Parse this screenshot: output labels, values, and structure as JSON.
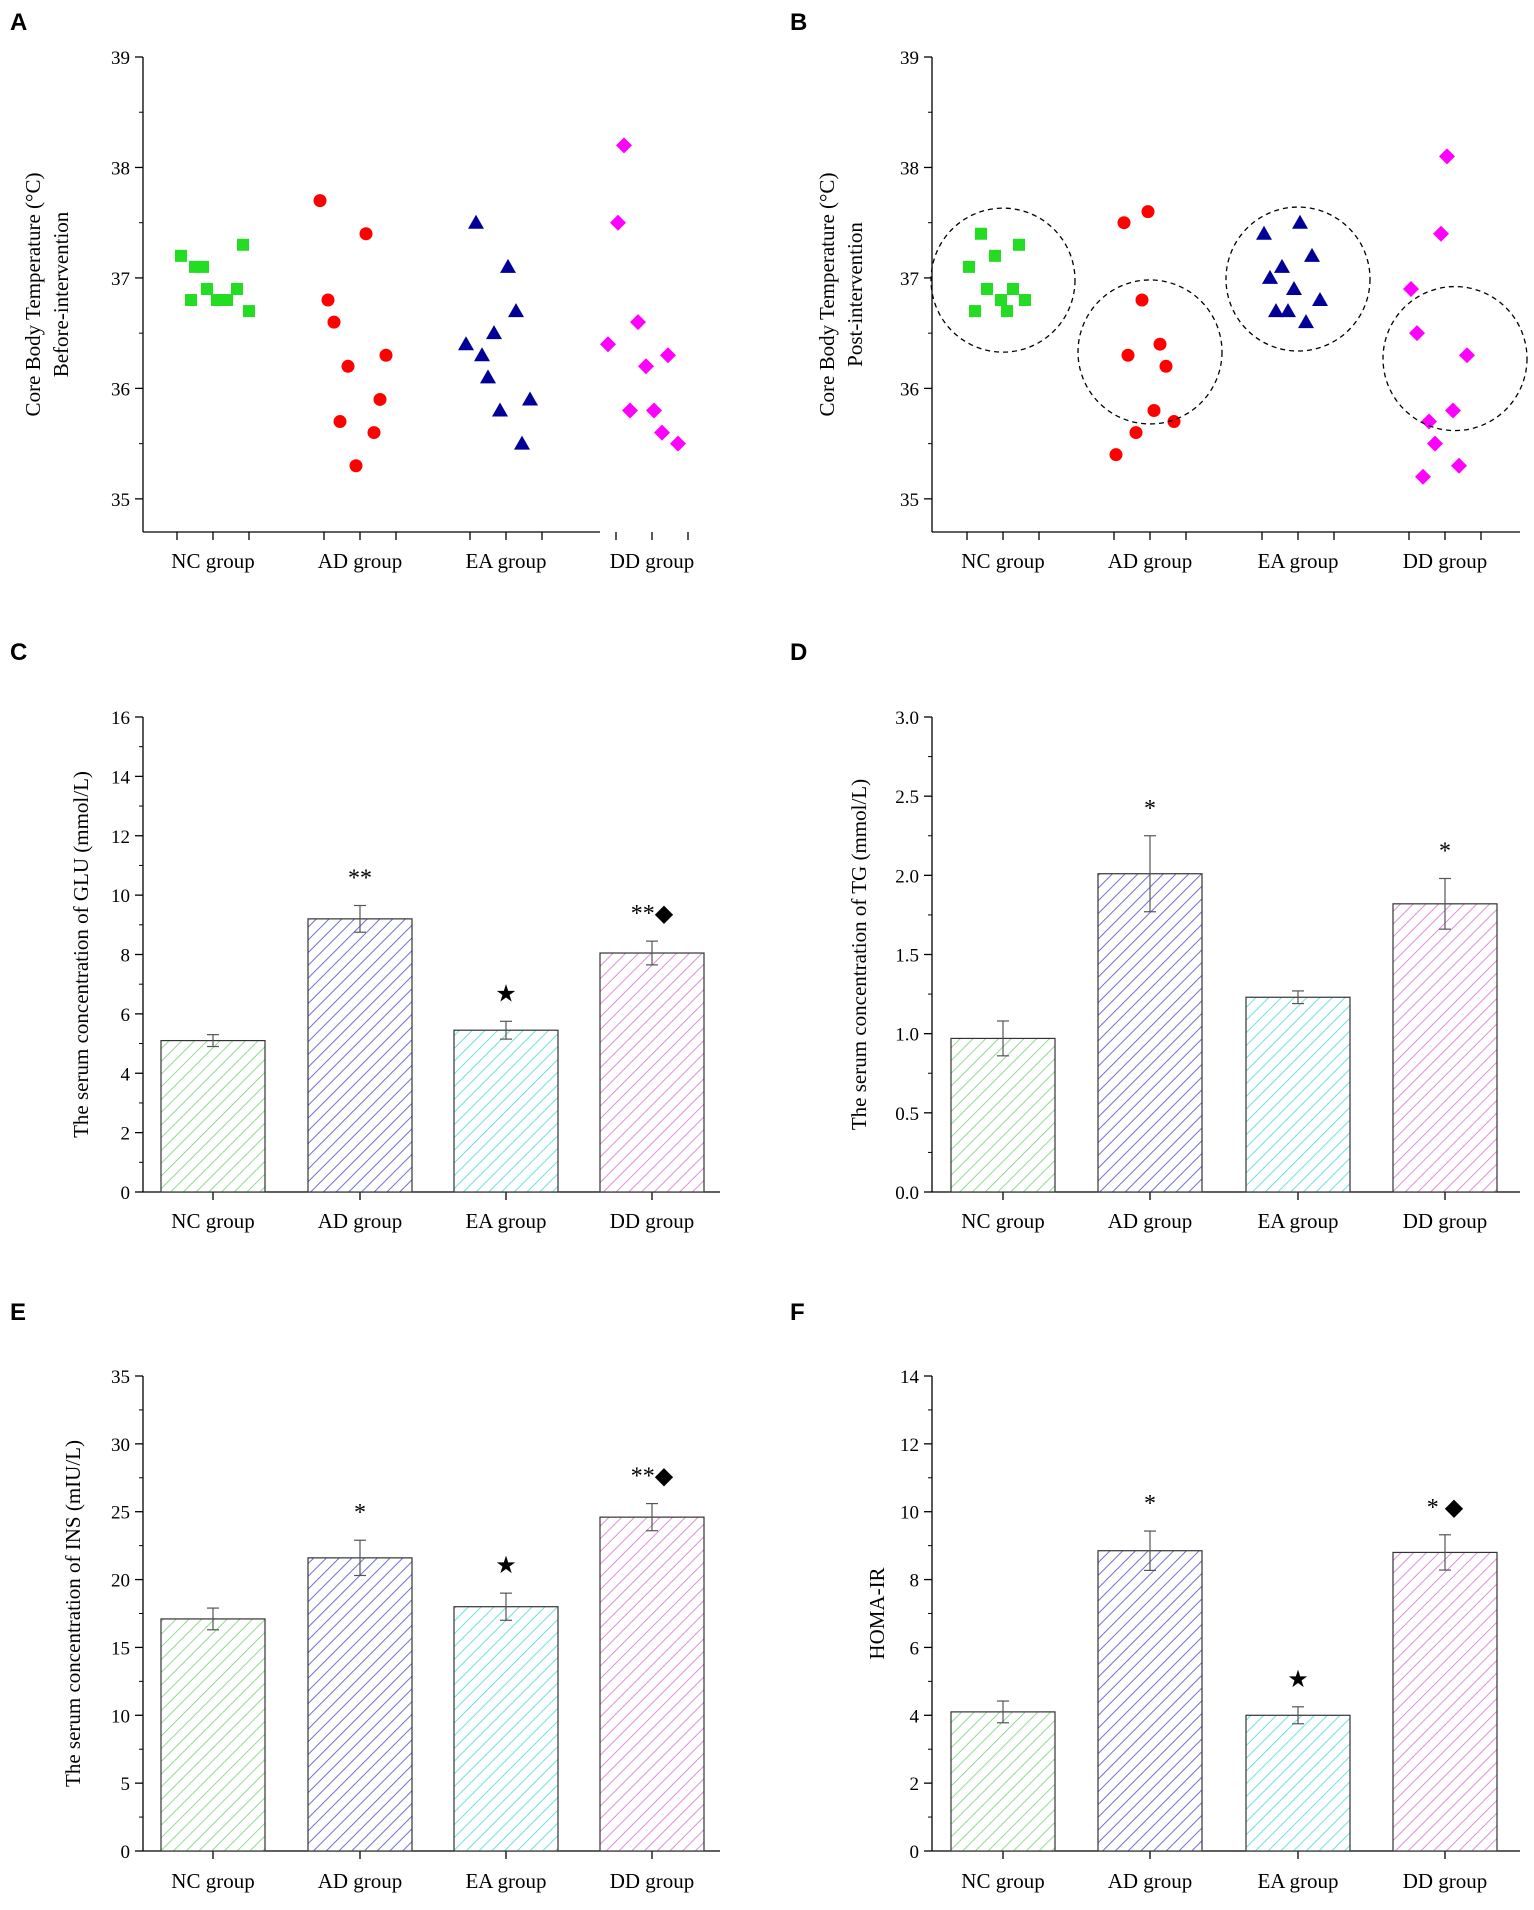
{
  "groups": [
    "NC group",
    "AD group",
    "EA group",
    "DD group"
  ],
  "colors": {
    "NC": "#22dd22",
    "AD": "#ff0000",
    "EA": "#000099",
    "DD": "#ff00ff",
    "NC_fill": "#8fdc8f",
    "AD_fill": "#6f6fd9",
    "EA_fill": "#6fe0e0",
    "DD_fill": "#e08fd8",
    "axis": "#000000"
  },
  "chart_data": [
    {
      "panel": "A",
      "type": "scatter",
      "ylabel_lines": [
        "Core Body Temperature (°C)",
        "Before-intervention"
      ],
      "ylim": [
        34.7,
        39
      ],
      "yticks": [
        35,
        36,
        37,
        38,
        39
      ],
      "categories": [
        "NC group",
        "AD group",
        "EA group",
        "DD group"
      ],
      "circles": false,
      "series": [
        {
          "name": "NC group",
          "marker": "square",
          "values": [
            37.2,
            37.1,
            37.1,
            36.8,
            36.9,
            36.8,
            36.8,
            36.9,
            37.3,
            36.7
          ]
        },
        {
          "name": "AD group",
          "marker": "circle",
          "values": [
            37.7,
            36.8,
            36.6,
            35.7,
            36.2,
            35.3,
            37.4,
            35.6,
            35.9,
            36.3
          ]
        },
        {
          "name": "EA group",
          "marker": "triangle",
          "values": [
            36.4,
            37.5,
            36.3,
            36.1,
            36.5,
            35.8,
            37.1,
            36.7,
            35.5,
            35.9
          ]
        },
        {
          "name": "DD group",
          "marker": "diamond",
          "values": [
            36.4,
            37.5,
            38.2,
            35.8,
            36.6,
            36.2,
            35.8,
            35.6,
            36.3,
            35.5
          ]
        }
      ]
    },
    {
      "panel": "B",
      "type": "scatter",
      "ylabel_lines": [
        "Core Body Temperature (°C)",
        "Post-intervention"
      ],
      "ylim": [
        34.7,
        39
      ],
      "yticks": [
        35,
        36,
        37,
        38,
        39
      ],
      "categories": [
        "NC group",
        "AD group",
        "EA group",
        "DD group"
      ],
      "circles": true,
      "series": [
        {
          "name": "NC group",
          "marker": "square",
          "values": [
            37.1,
            36.7,
            37.4,
            36.9,
            37.2,
            36.8,
            36.7,
            36.9,
            37.3,
            36.8
          ]
        },
        {
          "name": "AD group",
          "marker": "circle",
          "values": [
            35.4,
            37.5,
            36.3,
            35.6,
            36.8,
            37.6,
            35.8,
            36.4,
            36.2,
            35.7
          ]
        },
        {
          "name": "EA group",
          "marker": "triangle",
          "values": [
            37.4,
            37.0,
            36.7,
            37.1,
            36.7,
            36.9,
            37.5,
            36.6,
            37.2,
            36.8
          ]
        },
        {
          "name": "DD group",
          "marker": "diamond",
          "values": [
            36.9,
            36.5,
            35.2,
            35.7,
            35.5,
            37.4,
            38.1,
            35.8,
            35.3,
            36.3
          ]
        }
      ]
    },
    {
      "panel": "C",
      "type": "bar",
      "ylabel": "The serum concentration of GLU (mmol/L)",
      "ylim": [
        0,
        16
      ],
      "yticks": [
        "0",
        "2",
        "4",
        "6",
        "8",
        "10",
        "12",
        "14",
        "16"
      ],
      "categories": [
        "NC group",
        "AD group",
        "EA group",
        "DD group"
      ],
      "values": [
        5.1,
        9.2,
        5.45,
        8.05
      ],
      "errors": [
        0.2,
        0.45,
        0.3,
        0.4
      ],
      "annotations": [
        "",
        "**",
        "★",
        "**◆"
      ]
    },
    {
      "panel": "D",
      "type": "bar",
      "ylabel": "The serum concentration of TG (mmol/L)",
      "ylim": [
        0,
        3.0
      ],
      "yticks": [
        "0.0",
        "0.5",
        "1.0",
        "1.5",
        "2.0",
        "2.5",
        "3.0"
      ],
      "categories": [
        "NC group",
        "AD group",
        "EA group",
        "DD group"
      ],
      "values": [
        0.97,
        2.01,
        1.23,
        1.82
      ],
      "errors": [
        0.11,
        0.24,
        0.04,
        0.16
      ],
      "annotations": [
        "",
        "*",
        "",
        "*"
      ]
    },
    {
      "panel": "E",
      "type": "bar",
      "ylabel": "The serum concentration of INS (mIU/L)",
      "ylim": [
        0,
        35
      ],
      "yticks": [
        "0",
        "5",
        "10",
        "15",
        "20",
        "25",
        "30",
        "35"
      ],
      "categories": [
        "NC group",
        "AD group",
        "EA group",
        "DD group"
      ],
      "values": [
        17.1,
        21.6,
        18.0,
        24.6
      ],
      "errors": [
        0.8,
        1.3,
        1.0,
        1.0
      ],
      "annotations": [
        "",
        "*",
        "★",
        "**◆"
      ]
    },
    {
      "panel": "F",
      "type": "bar",
      "ylabel": "HOMA-IR",
      "ylim": [
        0,
        14
      ],
      "yticks": [
        "0",
        "2",
        "4",
        "6",
        "8",
        "10",
        "12",
        "14"
      ],
      "categories": [
        "NC group",
        "AD group",
        "EA group",
        "DD group"
      ],
      "values": [
        4.1,
        8.85,
        4.0,
        8.8
      ],
      "errors": [
        0.32,
        0.58,
        0.25,
        0.52
      ],
      "annotations": [
        "",
        "*",
        "★",
        "* ◆"
      ]
    }
  ]
}
